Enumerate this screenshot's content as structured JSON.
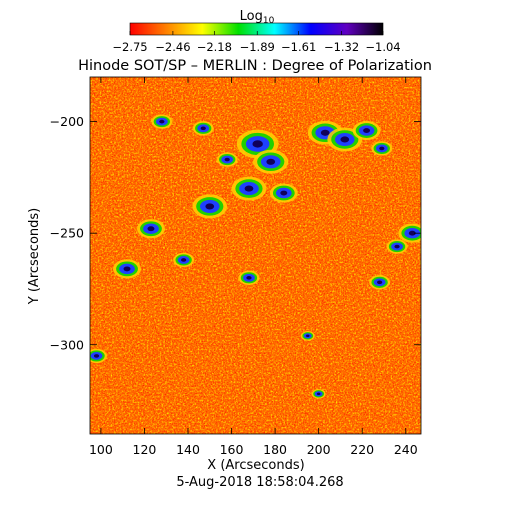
{
  "chart_data": {
    "type": "heatmap",
    "title": "Hinode SOT/SP – MERLIN : Degree of Polarization",
    "xlabel": "X (Arcseconds)",
    "ylabel": "Y (Arcseconds)",
    "xlim": [
      95,
      247
    ],
    "ylim": [
      -340,
      -180
    ],
    "xticks": [
      100,
      120,
      140,
      160,
      180,
      200,
      220,
      240
    ],
    "yticks": [
      -200,
      -250,
      -300
    ],
    "colorbar": {
      "label": "Log10",
      "ticks": [
        -2.75,
        -2.46,
        -2.18,
        -1.89,
        -1.61,
        -1.32,
        -1.04
      ],
      "range": [
        -2.75,
        -1.04
      ],
      "colors": [
        "#ff0000",
        "#ff8000",
        "#ffff00",
        "#00e000",
        "#00ffff",
        "#0000ff",
        "#6000c0",
        "#000000"
      ]
    },
    "timestamp": "5-Aug-2018 18:58:04.268",
    "strong_polarization_regions": [
      {
        "x": 128,
        "y": -200,
        "r": 3
      },
      {
        "x": 147,
        "y": -203,
        "r": 3
      },
      {
        "x": 158,
        "y": -217,
        "r": 3
      },
      {
        "x": 172,
        "y": -210,
        "r": 6
      },
      {
        "x": 178,
        "y": -218,
        "r": 5
      },
      {
        "x": 168,
        "y": -230,
        "r": 5
      },
      {
        "x": 184,
        "y": -232,
        "r": 4
      },
      {
        "x": 150,
        "y": -238,
        "r": 5
      },
      {
        "x": 123,
        "y": -248,
        "r": 4
      },
      {
        "x": 112,
        "y": -266,
        "r": 4
      },
      {
        "x": 168,
        "y": -270,
        "r": 3
      },
      {
        "x": 138,
        "y": -262,
        "r": 3
      },
      {
        "x": 203,
        "y": -205,
        "r": 5
      },
      {
        "x": 212,
        "y": -208,
        "r": 5
      },
      {
        "x": 222,
        "y": -204,
        "r": 4
      },
      {
        "x": 229,
        "y": -212,
        "r": 3
      },
      {
        "x": 243,
        "y": -250,
        "r": 4
      },
      {
        "x": 236,
        "y": -256,
        "r": 3
      },
      {
        "x": 228,
        "y": -272,
        "r": 3
      },
      {
        "x": 195,
        "y": -296,
        "r": 2
      },
      {
        "x": 200,
        "y": -322,
        "r": 2
      },
      {
        "x": 98,
        "y": -305,
        "r": 3
      }
    ]
  }
}
